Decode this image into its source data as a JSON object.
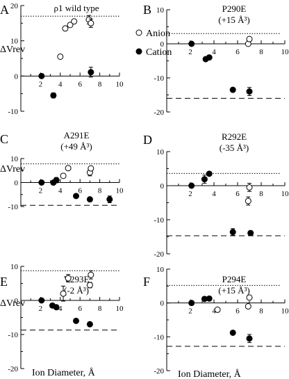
{
  "legend": {
    "open": "Anion",
    "filled": "Cation"
  },
  "y_axis_label": "ΔVrev",
  "x_axis_label": "Ion Diameter, Å",
  "chart_data": [
    {
      "panel": "A",
      "title": "ρ1 wild type",
      "subtitle": "",
      "type": "scatter",
      "xlim": [
        0,
        10
      ],
      "ylim": [
        -10,
        20
      ],
      "xticks": [
        2,
        4,
        6,
        8,
        10
      ],
      "yticks": [
        -10,
        0,
        10,
        20
      ],
      "ref_dotted": 17,
      "ref_dashed": null,
      "series": [
        {
          "name": "Anion",
          "marker": "open",
          "x": [
            4.0,
            4.5,
            5.0,
            5.4,
            6.9,
            7.1
          ],
          "y": [
            5.5,
            13.5,
            14.5,
            15.5,
            16,
            15
          ],
          "err": [
            0,
            0,
            0,
            0,
            1.2,
            1.2
          ]
        },
        {
          "name": "Cation",
          "marker": "filled",
          "x": [
            2.1,
            3.3,
            7.1
          ],
          "y": [
            0,
            -5.5,
            1.1
          ],
          "err": [
            0,
            0.7,
            1.4
          ]
        }
      ]
    },
    {
      "panel": "B",
      "title": "P290E",
      "subtitle": "(+15 Å³)",
      "type": "scatter",
      "xlim": [
        0,
        10
      ],
      "ylim": [
        -20,
        10
      ],
      "xticks": [
        2,
        4,
        6,
        8,
        10
      ],
      "yticks": [
        -20,
        -10,
        0,
        10
      ],
      "ref_dotted": 3,
      "ref_dashed": -16,
      "series": [
        {
          "name": "Anion",
          "marker": "open",
          "x": [
            6.9,
            7.0
          ],
          "y": [
            0,
            1.4
          ],
          "err": [
            0,
            0
          ]
        },
        {
          "name": "Cation",
          "marker": "filled",
          "x": [
            2.1,
            3.3,
            3.6,
            5.6,
            7.0
          ],
          "y": [
            0,
            -4.5,
            -4,
            -13.5,
            -14
          ],
          "err": [
            0,
            0,
            0,
            0.6,
            1.2
          ]
        }
      ]
    },
    {
      "panel": "C",
      "title": "A291E",
      "subtitle": "(+49 Å³)",
      "type": "scatter",
      "xlim": [
        0,
        10
      ],
      "ylim": [
        -10,
        10
      ],
      "xticks": [
        2,
        4,
        6,
        8,
        10
      ],
      "yticks": [
        -10,
        0,
        10
      ],
      "ref_dotted": 7.8,
      "ref_dashed": -9.5,
      "series": [
        {
          "name": "Anion",
          "marker": "open",
          "x": [
            3.3,
            4.3,
            4.8,
            7.0,
            7.1
          ],
          "y": [
            0,
            2.8,
            6,
            4.2,
            5.9
          ],
          "err": [
            0,
            0,
            0,
            1.4,
            0.8
          ]
        },
        {
          "name": "Cation",
          "marker": "filled",
          "x": [
            2.1,
            3.3,
            3.6,
            5.6,
            7.0,
            9.0
          ],
          "y": [
            0,
            0,
            1,
            -5.6,
            -7,
            -7
          ],
          "err": [
            0,
            0,
            1.1,
            0,
            0,
            1.4
          ]
        }
      ]
    },
    {
      "panel": "D",
      "title": "R292E",
      "subtitle": "(-35 Å³)",
      "type": "scatter",
      "xlim": [
        0,
        10
      ],
      "ylim": [
        -20,
        10
      ],
      "xticks": [
        2,
        4,
        6,
        8,
        10
      ],
      "yticks": [
        -20,
        -10,
        0,
        10
      ],
      "ref_dotted": 3.6,
      "ref_dashed": -14.7,
      "series": [
        {
          "name": "Anion",
          "marker": "open",
          "x": [
            6.9,
            7.0
          ],
          "y": [
            -4.5,
            -0.5
          ],
          "err": [
            1.2,
            1.2
          ]
        },
        {
          "name": "Cation",
          "marker": "filled",
          "x": [
            2.1,
            3.2,
            3.6,
            5.6,
            7.1
          ],
          "y": [
            0,
            1.9,
            3.5,
            -13.6,
            -13.9
          ],
          "err": [
            0,
            1.2,
            0,
            1,
            0.6
          ]
        }
      ]
    },
    {
      "panel": "E",
      "title": "V293E",
      "subtitle": "(-2 Å³)",
      "type": "scatter",
      "xlim": [
        0,
        10
      ],
      "ylim": [
        -20,
        10
      ],
      "xticks": [
        2,
        4,
        6,
        8,
        10
      ],
      "yticks": [
        -20,
        -10,
        0,
        10
      ],
      "ref_dotted": 8.7,
      "ref_dashed": -8.7,
      "series": [
        {
          "name": "Anion",
          "marker": "open",
          "x": [
            4.3,
            4.8,
            7.0,
            7.1
          ],
          "y": [
            2,
            6.5,
            4.5,
            7.5
          ],
          "err": [
            2.2,
            1.1,
            0.8,
            1.2
          ]
        },
        {
          "name": "Cation",
          "marker": "filled",
          "x": [
            2.1,
            3.2,
            3.6,
            5.6,
            7.0
          ],
          "y": [
            0,
            -1.5,
            -2,
            -6,
            -7
          ],
          "err": [
            0,
            0,
            0,
            0,
            0
          ]
        }
      ]
    },
    {
      "panel": "F",
      "title": "P294E",
      "subtitle": "(+15 Å³)",
      "type": "scatter",
      "xlim": [
        0,
        10
      ],
      "ylim": [
        -20,
        10
      ],
      "xticks": [
        2,
        4,
        6,
        8,
        10
      ],
      "yticks": [
        -20,
        -10,
        0,
        10
      ],
      "ref_dotted": 5.2,
      "ref_dashed": -12.8,
      "series": [
        {
          "name": "Anion",
          "marker": "open",
          "x": [
            4.3,
            6.9,
            7.0
          ],
          "y": [
            -2,
            -1,
            1.6
          ],
          "err": [
            0,
            0,
            0
          ]
        },
        {
          "name": "Cation",
          "marker": "filled",
          "x": [
            2.1,
            3.2,
            3.6,
            5.6,
            7.0
          ],
          "y": [
            0,
            1.2,
            1.3,
            -8.8,
            -10.5
          ],
          "err": [
            0,
            0,
            0,
            0,
            1.2
          ]
        }
      ]
    }
  ]
}
